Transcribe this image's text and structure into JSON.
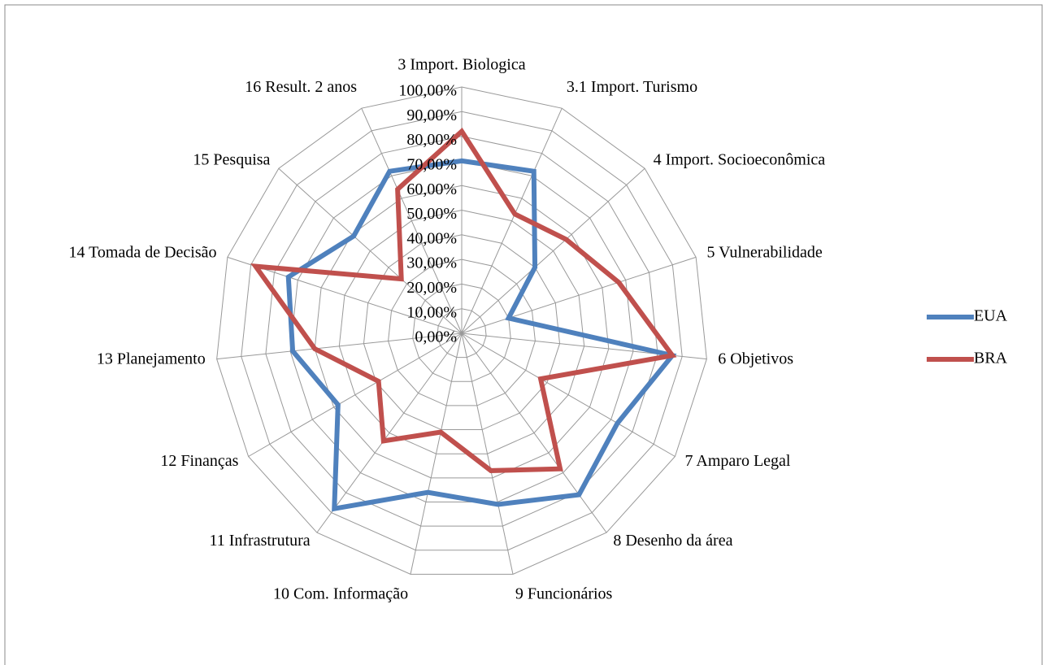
{
  "chart_data": {
    "type": "radar",
    "categories": [
      "3 Import. Biologica",
      "3.1 Import. Turismo",
      "4 Import. Socioeconômica",
      "5 Vulnerabilidade",
      "6 Objetivos",
      "7 Amparo Legal",
      "8 Desenho da área",
      "9 Funcionários",
      "10 Com. Informação",
      "11 Infrastrutura",
      "12 Finanças",
      "13 Planejamento",
      "14 Tomada de Decisão",
      "15 Pesquisa",
      "16 Result. 2 anos"
    ],
    "series": [
      {
        "name": "EUA",
        "color": "#4f81bd",
        "values": [
          70,
          72,
          40,
          20,
          86,
          73,
          81,
          71,
          66,
          88,
          58,
          69,
          74,
          59,
          72
        ]
      },
      {
        "name": "BRA",
        "color": "#c0504d",
        "values": [
          82,
          53,
          57,
          67,
          86,
          37,
          68,
          57,
          41,
          54,
          39,
          60,
          88,
          33,
          64
        ]
      }
    ],
    "ylim": [
      0,
      100
    ],
    "yticks": [
      {
        "value": 0,
        "label": "0,00%"
      },
      {
        "value": 10,
        "label": "10,00%"
      },
      {
        "value": 20,
        "label": "20,00%"
      },
      {
        "value": 30,
        "label": "30,00%"
      },
      {
        "value": 40,
        "label": "40,00%"
      },
      {
        "value": 50,
        "label": "50,00%"
      },
      {
        "value": 60,
        "label": "60,00%"
      },
      {
        "value": 70,
        "label": "70,00%"
      },
      {
        "value": 80,
        "label": "80,00%"
      },
      {
        "value": 90,
        "label": "90,00%"
      },
      {
        "value": 100,
        "label": "100,00%"
      }
    ],
    "grid": true,
    "legend": "right"
  }
}
